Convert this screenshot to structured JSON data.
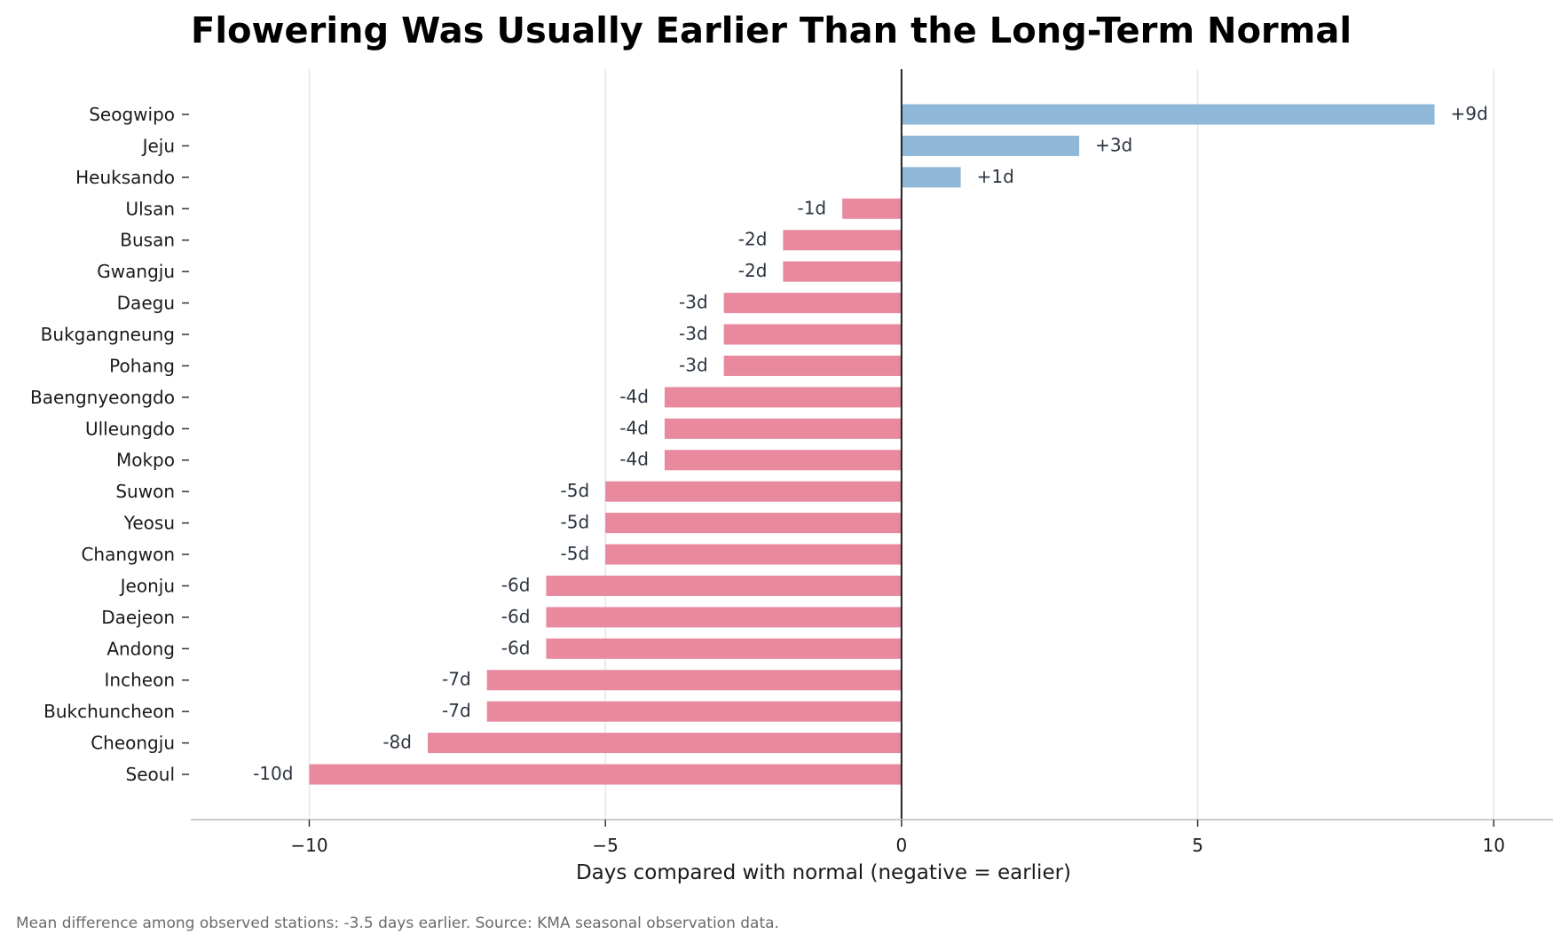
{
  "chart_data": {
    "type": "bar",
    "orientation": "horizontal",
    "title": "Flowering Was Usually Earlier Than the Long-Term Normal",
    "xlabel": "Days compared with normal (negative = earlier)",
    "ylabel": "",
    "footnote": "Mean difference among observed stations: -3.5 days earlier. Source: KMA seasonal observation data.",
    "xlim": [
      -12,
      11
    ],
    "xticks": [
      -10,
      -5,
      0,
      5,
      10
    ],
    "xtick_labels": [
      "−10",
      "−5",
      "0",
      "5",
      "10"
    ],
    "grid": "vertical",
    "categories": [
      "Seogwipo",
      "Jeju",
      "Heuksando",
      "Ulsan",
      "Busan",
      "Gwangju",
      "Daegu",
      "Bukgangneung",
      "Pohang",
      "Baengnyeongdo",
      "Ulleungdo",
      "Mokpo",
      "Suwon",
      "Yeosu",
      "Changwon",
      "Jeonju",
      "Daejeon",
      "Andong",
      "Incheon",
      "Bukchuncheon",
      "Cheongju",
      "Seoul"
    ],
    "values": [
      9,
      3,
      1,
      -1,
      -2,
      -2,
      -3,
      -3,
      -3,
      -4,
      -4,
      -4,
      -5,
      -5,
      -5,
      -6,
      -6,
      -6,
      -7,
      -7,
      -8,
      -10
    ],
    "data_labels": [
      "+9d",
      "+3d",
      "+1d",
      "-1d",
      "-2d",
      "-2d",
      "-3d",
      "-3d",
      "-3d",
      "-4d",
      "-4d",
      "-4d",
      "-5d",
      "-5d",
      "-5d",
      "-6d",
      "-6d",
      "-6d",
      "-7d",
      "-7d",
      "-8d",
      "-10d"
    ],
    "colors": {
      "later": "#8fb8d9",
      "earlier": "#e8899e",
      "zero_line": "#222222",
      "grid": "#e6e6e6",
      "axis": "#cccccc"
    }
  }
}
